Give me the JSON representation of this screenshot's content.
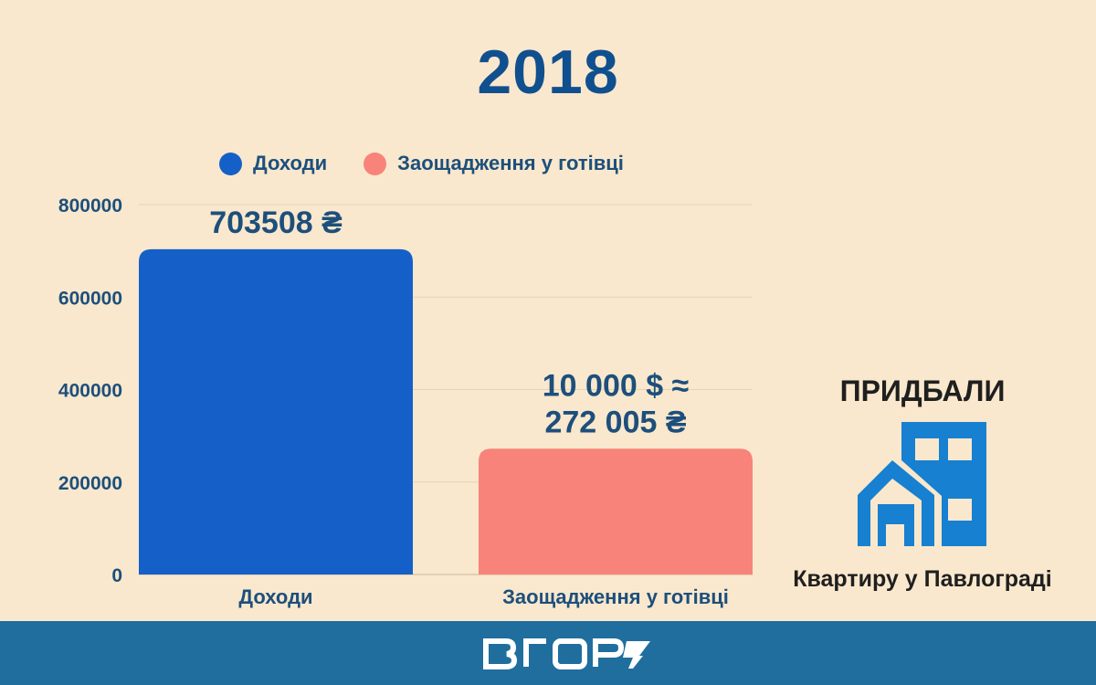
{
  "page": {
    "title": "2018",
    "side_title": "ПРИДБАЛИ",
    "side_caption": "Квартиру у Павлограді",
    "building_icon": "apartment-building-icon",
    "logo": "vhoru-logo"
  },
  "colors": {
    "background": "#f9e8cd",
    "title": "#10508f",
    "income": "#1460c8",
    "savings": "#f8837a",
    "footer": "#1f6e9e",
    "building": "#1780d0"
  },
  "chart_data": {
    "type": "bar",
    "categories": [
      "Доходи",
      "Заощадження у готівці"
    ],
    "values": [
      703508,
      272005
    ],
    "value_labels": [
      [
        "703508 ₴"
      ],
      [
        "10 000 $ ≈",
        "272 005 ₴"
      ]
    ],
    "legend": [
      "Доходи",
      "Заощадження у готівці"
    ],
    "colors": [
      "#1460c8",
      "#f8837a"
    ],
    "yticks": [
      "0",
      "200000",
      "400000",
      "600000",
      "800000"
    ],
    "ytick_values": [
      0,
      200000,
      400000,
      600000,
      800000
    ],
    "ylim": [
      0,
      800000
    ],
    "grid": true,
    "legend_position": "top"
  }
}
